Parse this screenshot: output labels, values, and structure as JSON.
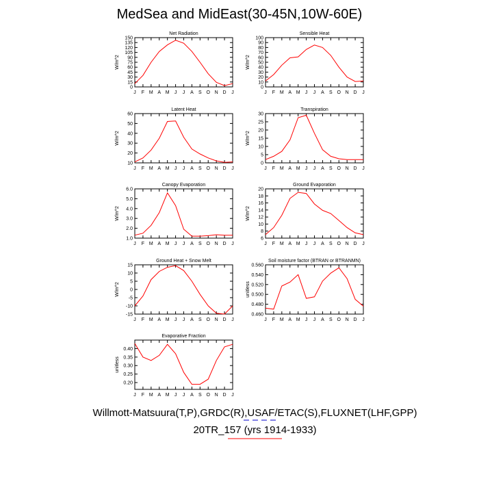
{
  "page": {
    "title": "MedSea and MidEast(30-45N,10W-60E)",
    "footer_line1": "Willmott-Matsuura(T,P),GRDC(R),USAF/ETAC(S),FLUXNET(LHF,GPP)",
    "footer_line2": "20TR_157 (yrs 1914-1933)"
  },
  "colors": {
    "line": "#ff0000",
    "axis": "#000000",
    "dash1": "#0000cc",
    "dash2": "#ff0000"
  },
  "chart_data": [
    {
      "type": "line",
      "title": "Net Radiation",
      "ylabel": "W/m^2",
      "categories": [
        "J",
        "F",
        "M",
        "A",
        "M",
        "J",
        "J",
        "A",
        "S",
        "O",
        "N",
        "D",
        "J"
      ],
      "values": [
        10,
        35,
        75,
        108,
        128,
        142,
        133,
        108,
        75,
        40,
        14,
        4,
        10
      ],
      "ylim": [
        0,
        150
      ],
      "yticks": [
        0,
        15,
        30,
        45,
        60,
        75,
        90,
        105,
        120,
        135,
        150
      ],
      "yticklabels": [
        "0",
        "15",
        "30",
        "45",
        "60",
        "75",
        "90",
        "105",
        "120",
        "135",
        "150"
      ]
    },
    {
      "type": "line",
      "title": "Sensible Heat",
      "ylabel": "W/m^2",
      "categories": [
        "J",
        "F",
        "M",
        "A",
        "M",
        "J",
        "J",
        "A",
        "S",
        "O",
        "N",
        "D",
        "J"
      ],
      "values": [
        12,
        25,
        44,
        59,
        61,
        76,
        85,
        80,
        64,
        40,
        20,
        11,
        12
      ],
      "ylim": [
        0,
        100
      ],
      "yticks": [
        0,
        10,
        20,
        30,
        40,
        50,
        60,
        70,
        80,
        90,
        100
      ],
      "yticklabels": [
        "0",
        "10",
        "20",
        "30",
        "40",
        "50",
        "60",
        "70",
        "80",
        "90",
        "100"
      ]
    },
    {
      "type": "line",
      "title": "Latent Heat",
      "ylabel": "W/m^2",
      "categories": [
        "J",
        "F",
        "M",
        "A",
        "M",
        "J",
        "J",
        "A",
        "S",
        "O",
        "N",
        "D",
        "J"
      ],
      "values": [
        11,
        15,
        23,
        35,
        52,
        52.5,
        36,
        24,
        19,
        15,
        12,
        10.5,
        11
      ],
      "ylim": [
        10,
        60
      ],
      "yticks": [
        10,
        20,
        30,
        40,
        50,
        60
      ],
      "yticklabels": [
        "10",
        "20",
        "30",
        "40",
        "50",
        "60"
      ]
    },
    {
      "type": "line",
      "title": "Transpiration",
      "ylabel": "W/m^2",
      "categories": [
        "J",
        "F",
        "M",
        "A",
        "M",
        "J",
        "J",
        "A",
        "S",
        "O",
        "N",
        "D",
        "J"
      ],
      "values": [
        2,
        4,
        7,
        14,
        27.5,
        29,
        18,
        8,
        4,
        2.5,
        2,
        2,
        2
      ],
      "ylim": [
        0,
        30
      ],
      "yticks": [
        0,
        5,
        10,
        15,
        20,
        25,
        30
      ],
      "yticklabels": [
        "0",
        "5",
        "10",
        "15",
        "20",
        "25",
        "30"
      ]
    },
    {
      "type": "line",
      "title": "Canopy Evaporation",
      "ylabel": "W/m^2",
      "categories": [
        "J",
        "F",
        "M",
        "A",
        "M",
        "J",
        "J",
        "A",
        "S",
        "O",
        "N",
        "D",
        "J"
      ],
      "values": [
        1.3,
        1.5,
        2.3,
        3.6,
        5.6,
        4.3,
        1.9,
        1.2,
        1.2,
        1.25,
        1.35,
        1.3,
        1.3
      ],
      "ylim": [
        1,
        6
      ],
      "yticks": [
        1,
        2,
        3,
        4,
        5,
        6
      ],
      "yticklabels": [
        "1.0",
        "2.0",
        "3.0",
        "4.0",
        "5.0",
        "6.0"
      ]
    },
    {
      "type": "line",
      "title": "Ground Evaporation",
      "ylabel": "W/m^2",
      "categories": [
        "J",
        "F",
        "M",
        "A",
        "M",
        "J",
        "J",
        "A",
        "S",
        "O",
        "N",
        "D",
        "J"
      ],
      "values": [
        7,
        9,
        12.5,
        17.3,
        19,
        18.7,
        15.7,
        13.9,
        13,
        11,
        9,
        7.5,
        7
      ],
      "ylim": [
        6,
        20
      ],
      "yticks": [
        6,
        8,
        10,
        12,
        14,
        16,
        18,
        20
      ],
      "yticklabels": [
        "6",
        "8",
        "10",
        "12",
        "14",
        "16",
        "18",
        "20"
      ]
    },
    {
      "type": "line",
      "title": "Ground Heat + Snow Melt",
      "ylabel": "W/m^2",
      "categories": [
        "J",
        "F",
        "M",
        "A",
        "M",
        "J",
        "J",
        "A",
        "S",
        "O",
        "N",
        "D",
        "J"
      ],
      "values": [
        -10,
        -4,
        6,
        11,
        13.5,
        14.5,
        11.5,
        5,
        -3,
        -10,
        -14.5,
        -15,
        -10
      ],
      "ylim": [
        -15,
        15
      ],
      "yticks": [
        -15,
        -10,
        -5,
        0,
        5,
        10,
        15
      ],
      "yticklabels": [
        "-15",
        "-10",
        "-5",
        "0",
        "5",
        "10",
        "15"
      ]
    },
    {
      "type": "line",
      "title": "Soil moisture factor (BTRAN or BTRANMN)",
      "ylabel": "unitless",
      "categories": [
        "J",
        "F",
        "M",
        "A",
        "M",
        "J",
        "J",
        "A",
        "S",
        "O",
        "N",
        "D",
        "J"
      ],
      "values": [
        0.472,
        0.47,
        0.517,
        0.525,
        0.54,
        0.492,
        0.495,
        0.527,
        0.543,
        0.554,
        0.532,
        0.49,
        0.476
      ],
      "ylim": [
        0.46,
        0.56
      ],
      "yticks": [
        0.46,
        0.48,
        0.5,
        0.52,
        0.54,
        0.56
      ],
      "yticklabels": [
        "0.460",
        "0.480",
        "0.500",
        "0.520",
        "0.540",
        "0.560"
      ]
    },
    {
      "type": "line",
      "title": "Evaporative Fraction",
      "ylabel": "unitless",
      "categories": [
        "J",
        "F",
        "M",
        "A",
        "M",
        "J",
        "J",
        "A",
        "S",
        "O",
        "N",
        "D",
        "J"
      ],
      "values": [
        0.43,
        0.35,
        0.33,
        0.36,
        0.425,
        0.37,
        0.26,
        0.19,
        0.19,
        0.22,
        0.33,
        0.41,
        0.425
      ],
      "ylim": [
        0.16,
        0.45
      ],
      "yticks": [
        0.2,
        0.25,
        0.3,
        0.35,
        0.4
      ],
      "yticklabels": [
        "0.20",
        "0.25",
        "0.30",
        "0.35",
        "0.40"
      ]
    }
  ]
}
